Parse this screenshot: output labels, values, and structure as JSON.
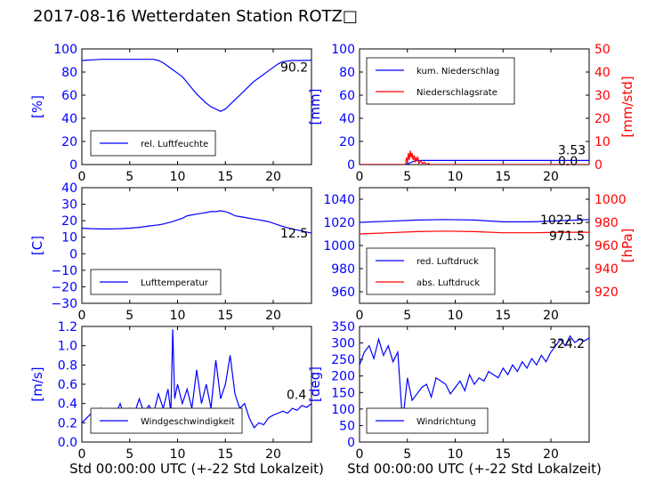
{
  "page": {
    "title": "2017-08-16 Wetterdaten Station ROTZ□"
  },
  "colors": {
    "primary": "#0000ff",
    "secondary": "#ff0000",
    "axis": "#000000",
    "text": "#000000"
  },
  "chart_data": [
    {
      "id": "humidity",
      "type": "line",
      "ylabel": "[%]",
      "xlabel": "",
      "xlim": [
        0,
        24
      ],
      "ylim": [
        0,
        100
      ],
      "x_ticks": [
        "0",
        "5",
        "10",
        "15",
        "20"
      ],
      "y_ticks": [
        "0",
        "20",
        "40",
        "60",
        "80",
        "100"
      ],
      "last_value_label": "90.2",
      "legend": "lower-left",
      "series": [
        {
          "name": "rel. Luftfeuchte",
          "color": "#0000ff",
          "x": [
            0,
            2,
            4,
            6,
            7.5,
            8,
            8.5,
            9,
            9.5,
            10,
            10.5,
            11,
            11.5,
            12,
            12.5,
            13,
            13.5,
            14,
            14.5,
            15,
            15.5,
            16,
            16.5,
            17,
            17.5,
            18,
            18.5,
            19,
            19.5,
            20,
            20.5,
            21,
            22,
            23,
            24
          ],
          "y": [
            90,
            91,
            91,
            91,
            91,
            90,
            88,
            85,
            82,
            79,
            76,
            71,
            66,
            61,
            57,
            53,
            50,
            48,
            46,
            48,
            52,
            56,
            60,
            64,
            68,
            72,
            75,
            78,
            81,
            84,
            87,
            89,
            90,
            90,
            90.2
          ]
        }
      ]
    },
    {
      "id": "precipitation",
      "type": "line",
      "ylabel": "[mm]",
      "y2label": "[mm/std]",
      "xlim": [
        0,
        24
      ],
      "ylim": [
        0,
        100
      ],
      "y2lim": [
        0,
        50
      ],
      "x_ticks": [
        "0",
        "5",
        "10",
        "15",
        "20"
      ],
      "y_ticks": [
        "0",
        "20",
        "40",
        "60",
        "80",
        "100"
      ],
      "y2_ticks": [
        "0",
        "10",
        "20",
        "30",
        "40",
        "50"
      ],
      "last_value_labels": [
        "3.53",
        "0.0"
      ],
      "legend": "upper-left",
      "series": [
        {
          "name": "kum. Niederschlag",
          "color": "#0000ff",
          "axis": "left",
          "x": [
            0,
            4.8,
            5.0,
            5.2,
            5.4,
            5.6,
            5.8,
            6.0,
            6.5,
            7.5,
            24
          ],
          "y": [
            0,
            0,
            0.5,
            1.2,
            2.0,
            2.6,
            3.1,
            3.4,
            3.5,
            3.53,
            3.53
          ]
        },
        {
          "name": "Niederschlagsrate",
          "color": "#ff0000",
          "axis": "right",
          "x": [
            0,
            4.8,
            4.9,
            5.0,
            5.1,
            5.2,
            5.3,
            5.4,
            5.5,
            5.6,
            5.7,
            5.8,
            5.9,
            6.0,
            6.1,
            6.2,
            6.4,
            6.6,
            6.8,
            7.0,
            7.2,
            7.4,
            24
          ],
          "y": [
            0,
            0,
            3,
            1,
            5,
            2,
            6,
            3,
            5,
            2,
            4,
            1,
            3,
            2,
            3,
            0.5,
            1.5,
            0.5,
            1,
            0,
            0.5,
            0,
            0
          ]
        }
      ]
    },
    {
      "id": "temperature",
      "type": "line",
      "ylabel": "[C]",
      "xlim": [
        0,
        24
      ],
      "ylim": [
        -30,
        40
      ],
      "x_ticks": [
        "0",
        "5",
        "10",
        "15",
        "20"
      ],
      "y_ticks": [
        "−30",
        "−20",
        "−10",
        "0",
        "10",
        "20",
        "30",
        "40"
      ],
      "last_value_label": "12.5",
      "legend": "lower-left",
      "series": [
        {
          "name": "Lufttemperatur",
          "color": "#0000ff",
          "x": [
            0,
            1,
            2,
            3,
            4,
            5,
            6,
            7,
            8,
            8.5,
            9,
            9.5,
            10,
            10.5,
            11,
            11.5,
            12,
            12.5,
            13,
            13.5,
            14,
            14.5,
            15,
            15.5,
            16,
            16.5,
            17,
            17.5,
            18,
            18.5,
            19,
            19.5,
            20,
            20.5,
            21,
            22,
            23,
            24
          ],
          "y": [
            15.5,
            15.2,
            15.0,
            15.0,
            15.2,
            15.5,
            16.0,
            16.8,
            17.5,
            18.0,
            18.8,
            19.5,
            20.5,
            21.5,
            23.0,
            23.5,
            24.0,
            24.5,
            25.0,
            25.5,
            25.5,
            26.0,
            25.5,
            24.5,
            23.0,
            22.5,
            22.0,
            21.5,
            21.0,
            20.5,
            20.0,
            19.5,
            18.5,
            17.5,
            16.5,
            15.0,
            13.8,
            12.5
          ]
        }
      ]
    },
    {
      "id": "pressure",
      "type": "line",
      "ylabel": "",
      "y2label": "[hPa]",
      "xlim": [
        0,
        24
      ],
      "ylim": [
        950,
        1050
      ],
      "y2lim": [
        910,
        1010
      ],
      "x_ticks": [
        "0",
        "5",
        "10",
        "15",
        "20"
      ],
      "y_ticks": [
        "960",
        "980",
        "1000",
        "1020",
        "1040"
      ],
      "y2_ticks": [
        "920",
        "940",
        "960",
        "980",
        "1000"
      ],
      "last_value_labels": [
        "1022.5",
        "971.5"
      ],
      "legend": "lower-left",
      "series": [
        {
          "name": "red. Luftdruck",
          "color": "#0000ff",
          "axis": "left",
          "x": [
            0,
            3,
            6,
            9,
            12,
            15,
            18,
            21,
            24
          ],
          "y": [
            1020.0,
            1021.0,
            1022.0,
            1022.5,
            1022.0,
            1020.5,
            1020.5,
            1021.5,
            1022.5
          ]
        },
        {
          "name": "abs. Luftdruck",
          "color": "#ff0000",
          "axis": "right",
          "x": [
            0,
            3,
            6,
            9,
            12,
            15,
            18,
            21,
            24
          ],
          "y": [
            970.0,
            971.0,
            972.0,
            972.5,
            972.0,
            971.0,
            971.0,
            971.5,
            971.5
          ]
        }
      ]
    },
    {
      "id": "windspeed",
      "type": "line",
      "ylabel": "[m/s]",
      "xlabel": "Std 00:00:00 UTC (+-22 Std Lokalzeit)",
      "xlim": [
        0,
        24
      ],
      "ylim": [
        0,
        1.2
      ],
      "x_ticks": [
        "0",
        "5",
        "10",
        "15",
        "20"
      ],
      "y_ticks": [
        "0.0",
        "0.2",
        "0.4",
        "0.6",
        "0.8",
        "1.0",
        "1.2"
      ],
      "last_value_label": "0.4",
      "legend": "lower-left",
      "series": [
        {
          "name": "Windgeschwindigkeit",
          "color": "#0000ff",
          "x": [
            0,
            0.5,
            1,
            1.5,
            2,
            2.5,
            3,
            3.5,
            4,
            4.5,
            5,
            5.5,
            6,
            6.5,
            7,
            7.5,
            8,
            8.5,
            9,
            9.3,
            9.5,
            9.7,
            10,
            10.5,
            11,
            11.5,
            12,
            12.5,
            13,
            13.5,
            14,
            14.5,
            15,
            15.5,
            16,
            16.5,
            17,
            17.5,
            18,
            18.5,
            19,
            19.5,
            20,
            20.5,
            21,
            21.5,
            22,
            22.5,
            23,
            23.5,
            24
          ],
          "y": [
            0.2,
            0.25,
            0.3,
            0.22,
            0.35,
            0.25,
            0.3,
            0.28,
            0.4,
            0.25,
            0.35,
            0.3,
            0.45,
            0.3,
            0.38,
            0.3,
            0.5,
            0.35,
            0.55,
            0.3,
            1.17,
            0.45,
            0.6,
            0.4,
            0.55,
            0.35,
            0.75,
            0.4,
            0.6,
            0.35,
            0.85,
            0.45,
            0.6,
            0.9,
            0.5,
            0.35,
            0.4,
            0.25,
            0.15,
            0.2,
            0.18,
            0.25,
            0.28,
            0.3,
            0.32,
            0.3,
            0.35,
            0.33,
            0.38,
            0.36,
            0.4
          ]
        }
      ]
    },
    {
      "id": "winddirection",
      "type": "line",
      "ylabel": "[deg]",
      "xlabel": "Std 00:00:00 UTC (+-22 Std Lokalzeit)",
      "xlim": [
        0,
        24
      ],
      "ylim": [
        0,
        360
      ],
      "x_ticks": [
        "0",
        "5",
        "10",
        "15",
        "20"
      ],
      "y_ticks": [
        "0",
        "50",
        "100",
        "150",
        "200",
        "250",
        "300",
        "350"
      ],
      "last_value_label": "324.2",
      "legend": "lower-left",
      "series": [
        {
          "name": "Windrichtung",
          "color": "#0000ff",
          "x": [
            0,
            0.5,
            1,
            1.5,
            2,
            2.5,
            3,
            3.5,
            4,
            4.5,
            5,
            5.5,
            6,
            6.5,
            7,
            7.5,
            8,
            8.5,
            9,
            9.5,
            10,
            10.5,
            11,
            11.5,
            12,
            12.5,
            13,
            13.5,
            14,
            14.5,
            15,
            15.5,
            16,
            16.5,
            17,
            17.5,
            18,
            18.5,
            19,
            19.5,
            20,
            20.5,
            21,
            21.5,
            22,
            22.5,
            23,
            23.5,
            24
          ],
          "y": [
            240,
            280,
            300,
            260,
            320,
            270,
            300,
            250,
            280,
            60,
            200,
            130,
            150,
            170,
            180,
            140,
            200,
            190,
            180,
            150,
            170,
            190,
            160,
            210,
            180,
            200,
            190,
            220,
            210,
            200,
            230,
            210,
            240,
            220,
            250,
            230,
            260,
            240,
            270,
            250,
            280,
            300,
            320,
            300,
            330,
            310,
            320,
            315,
            324.2
          ]
        }
      ]
    }
  ]
}
